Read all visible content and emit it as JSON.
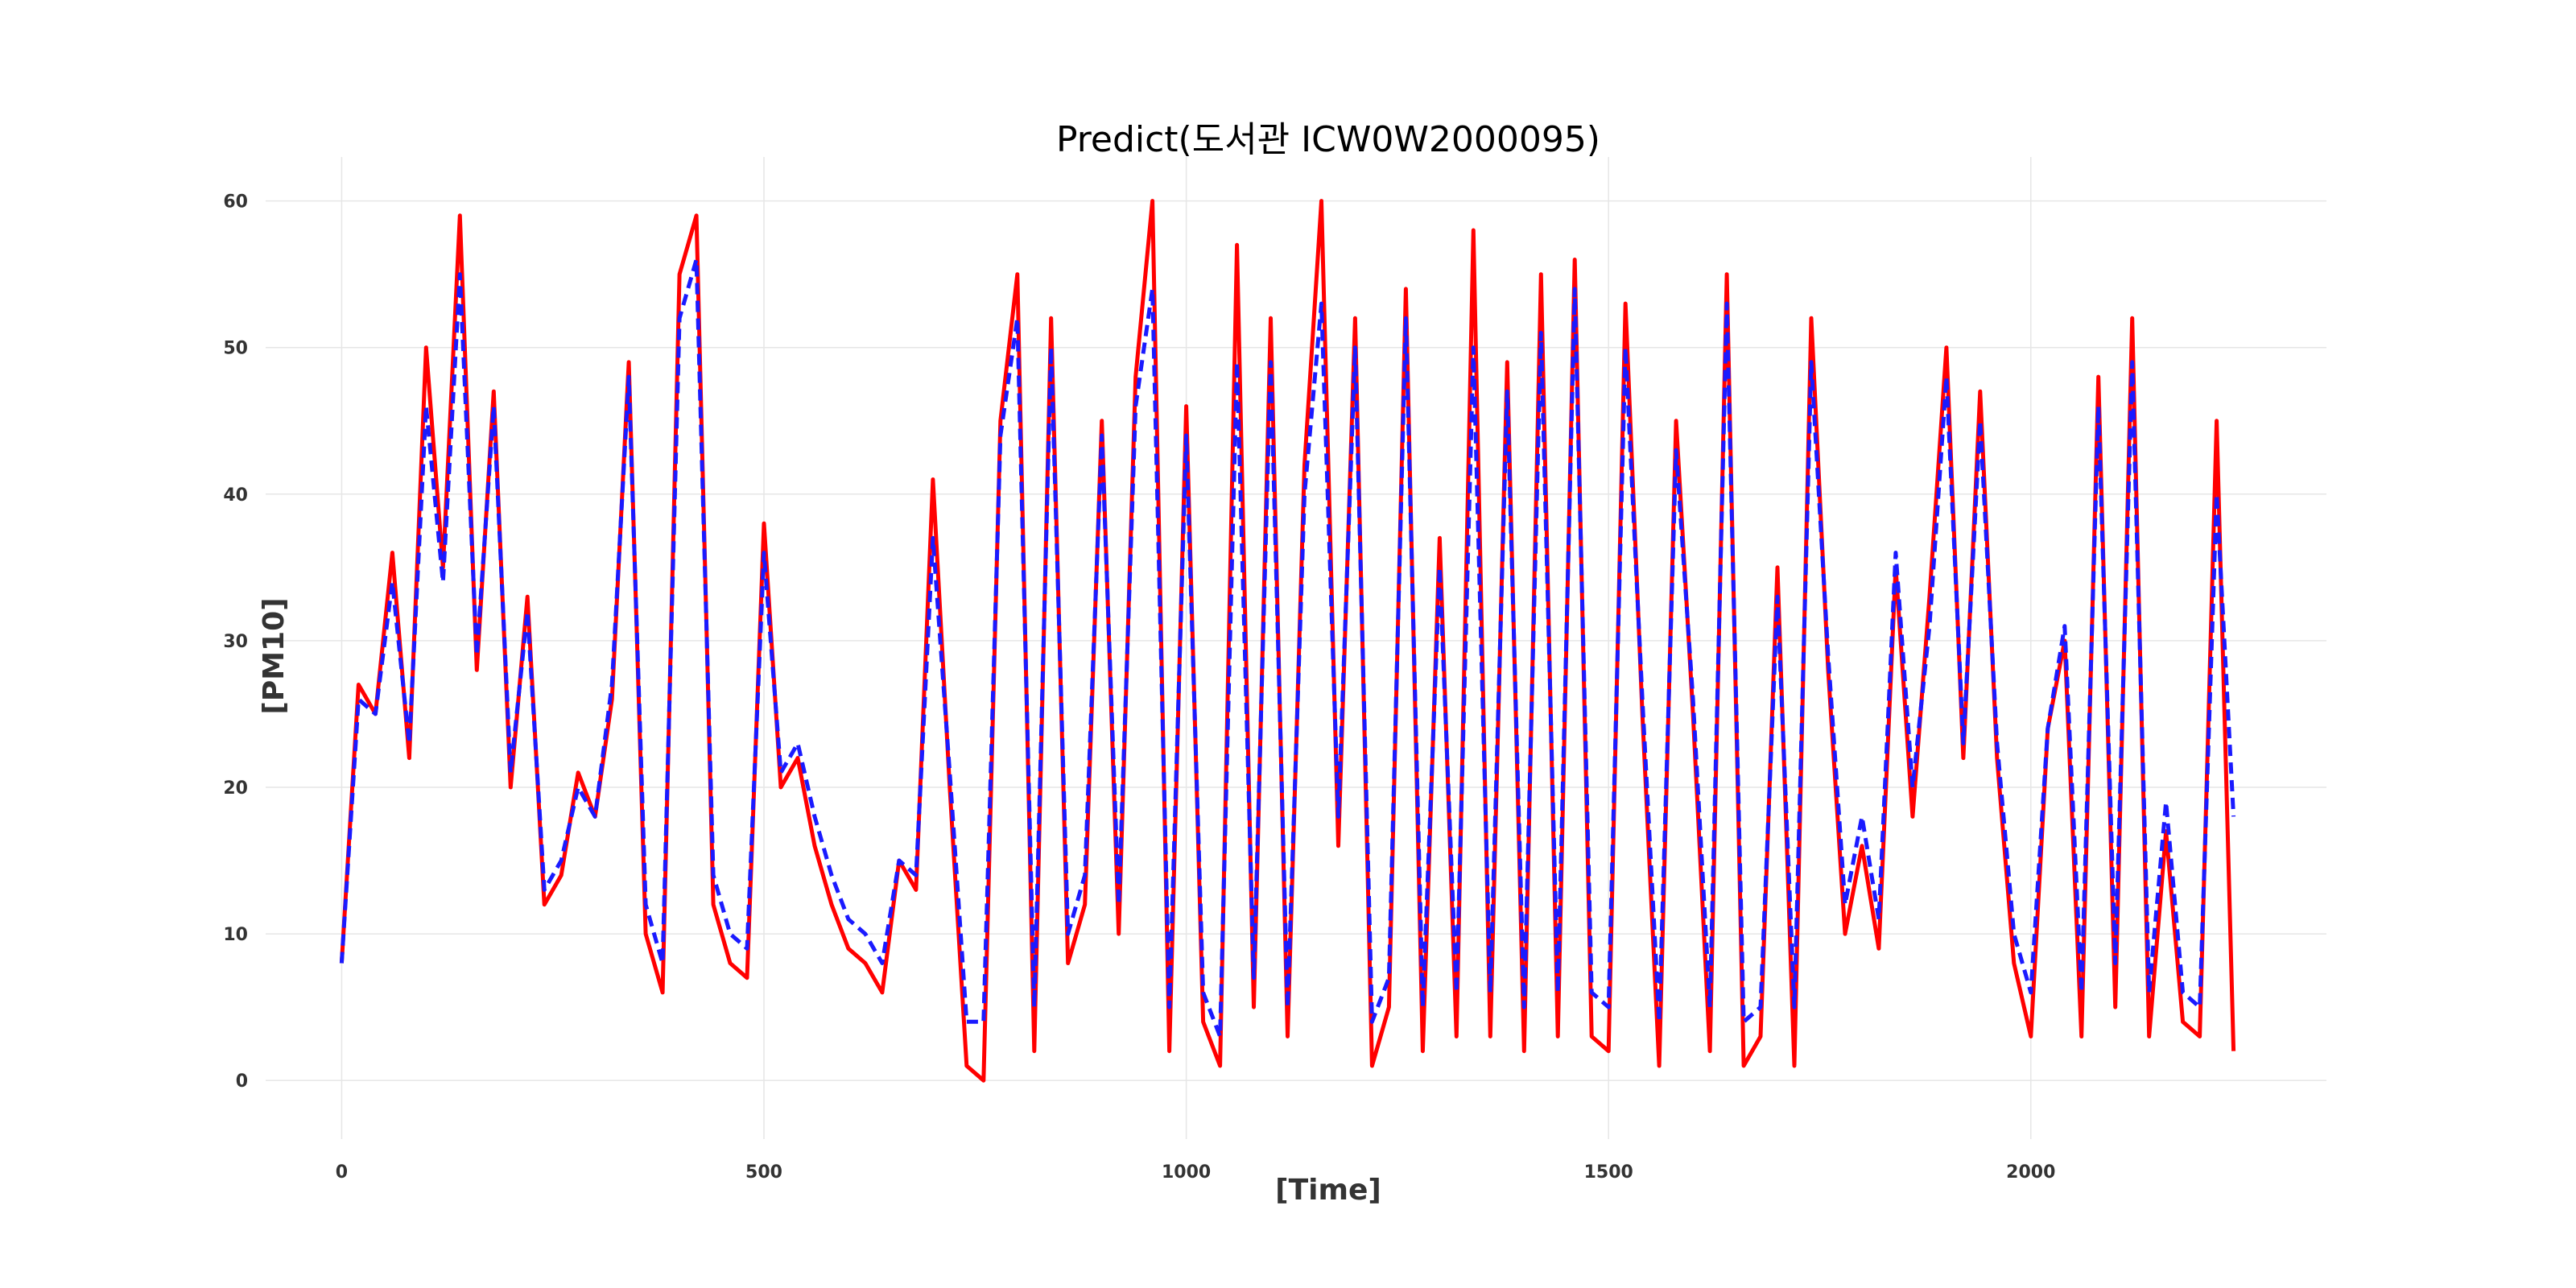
{
  "chart_data": {
    "type": "line",
    "title": "Predict(도서관 ICW0W2000095)",
    "xlabel": "[Time]",
    "ylabel": "[PM10]",
    "xlim": [
      -90,
      2350
    ],
    "ylim": [
      -4,
      63
    ],
    "x_ticks": [
      0,
      500,
      1000,
      1500,
      2000
    ],
    "x_tick_labels": [
      "0",
      "500",
      "1000",
      "1500",
      "2000"
    ],
    "y_ticks": [
      0,
      10,
      20,
      30,
      40,
      50,
      60
    ],
    "y_tick_labels": [
      "0",
      "10",
      "20",
      "30",
      "40",
      "50",
      "60"
    ],
    "grid": true,
    "legend": "none",
    "x": [
      0,
      20,
      40,
      60,
      80,
      100,
      120,
      140,
      160,
      180,
      200,
      220,
      240,
      260,
      280,
      300,
      320,
      340,
      360,
      380,
      400,
      420,
      440,
      460,
      480,
      500,
      520,
      540,
      560,
      580,
      600,
      620,
      640,
      660,
      680,
      700,
      720,
      740,
      760,
      780,
      800,
      820,
      840,
      860,
      880,
      900,
      920,
      940,
      960,
      980,
      1000,
      1020,
      1040,
      1060,
      1080,
      1100,
      1120,
      1140,
      1160,
      1180,
      1200,
      1220,
      1240,
      1260,
      1280,
      1300,
      1320,
      1340,
      1360,
      1380,
      1400,
      1420,
      1440,
      1460,
      1480,
      1500,
      1520,
      1540,
      1560,
      1580,
      1600,
      1620,
      1640,
      1660,
      1680,
      1700,
      1720,
      1740,
      1760,
      1780,
      1800,
      1820,
      1840,
      1860,
      1880,
      1900,
      1920,
      1940,
      1960,
      1980,
      2000,
      2020,
      2040,
      2060,
      2080,
      2100,
      2120,
      2140,
      2160,
      2180,
      2200,
      2220,
      2240
    ],
    "series": [
      {
        "color": "#ff0000",
        "dash": "solid",
        "values": [
          8,
          27,
          25,
          36,
          22,
          50,
          35,
          59,
          28,
          47,
          20,
          33,
          12,
          14,
          21,
          18,
          26,
          49,
          10,
          6,
          55,
          59,
          12,
          8,
          7,
          38,
          20,
          22,
          16,
          12,
          9,
          8,
          6,
          15,
          13,
          41,
          20,
          1,
          0,
          45,
          55,
          2,
          52,
          8,
          12,
          45,
          10,
          48,
          60,
          2,
          46,
          4,
          1,
          57,
          5,
          52,
          3,
          42,
          60,
          16,
          52,
          1,
          5,
          54,
          2,
          37,
          3,
          58,
          3,
          49,
          2,
          55,
          3,
          56,
          3,
          2,
          53,
          25,
          1,
          45,
          25,
          2,
          55,
          1,
          3,
          35,
          1,
          52,
          28,
          10,
          16,
          9,
          35,
          18,
          33,
          50,
          22,
          47,
          22,
          8,
          3,
          24,
          30,
          3,
          48,
          5,
          52,
          3,
          17,
          4,
          3,
          45,
          2
        ]
      },
      {
        "color": "#1a1aff",
        "dash": "dashed",
        "values": [
          8,
          26,
          25,
          34,
          23,
          46,
          34,
          55,
          29,
          46,
          21,
          32,
          13,
          15,
          20,
          18,
          27,
          48,
          12,
          8,
          52,
          56,
          14,
          10,
          9,
          36,
          21,
          23,
          18,
          14,
          11,
          10,
          8,
          15,
          14,
          37,
          21,
          4,
          4,
          44,
          52,
          5,
          50,
          10,
          14,
          44,
          12,
          46,
          54,
          5,
          44,
          6,
          3,
          49,
          7,
          49,
          5,
          40,
          53,
          18,
          50,
          4,
          7,
          52,
          5,
          35,
          6,
          50,
          6,
          47,
          5,
          51,
          6,
          54,
          6,
          5,
          50,
          26,
          4,
          43,
          26,
          5,
          53,
          4,
          5,
          33,
          5,
          49,
          29,
          12,
          18,
          11,
          36,
          20,
          31,
          48,
          23,
          45,
          23,
          10,
          6,
          24,
          31,
          6,
          46,
          8,
          49,
          6,
          19,
          6,
          5,
          40,
          18
        ]
      }
    ]
  }
}
